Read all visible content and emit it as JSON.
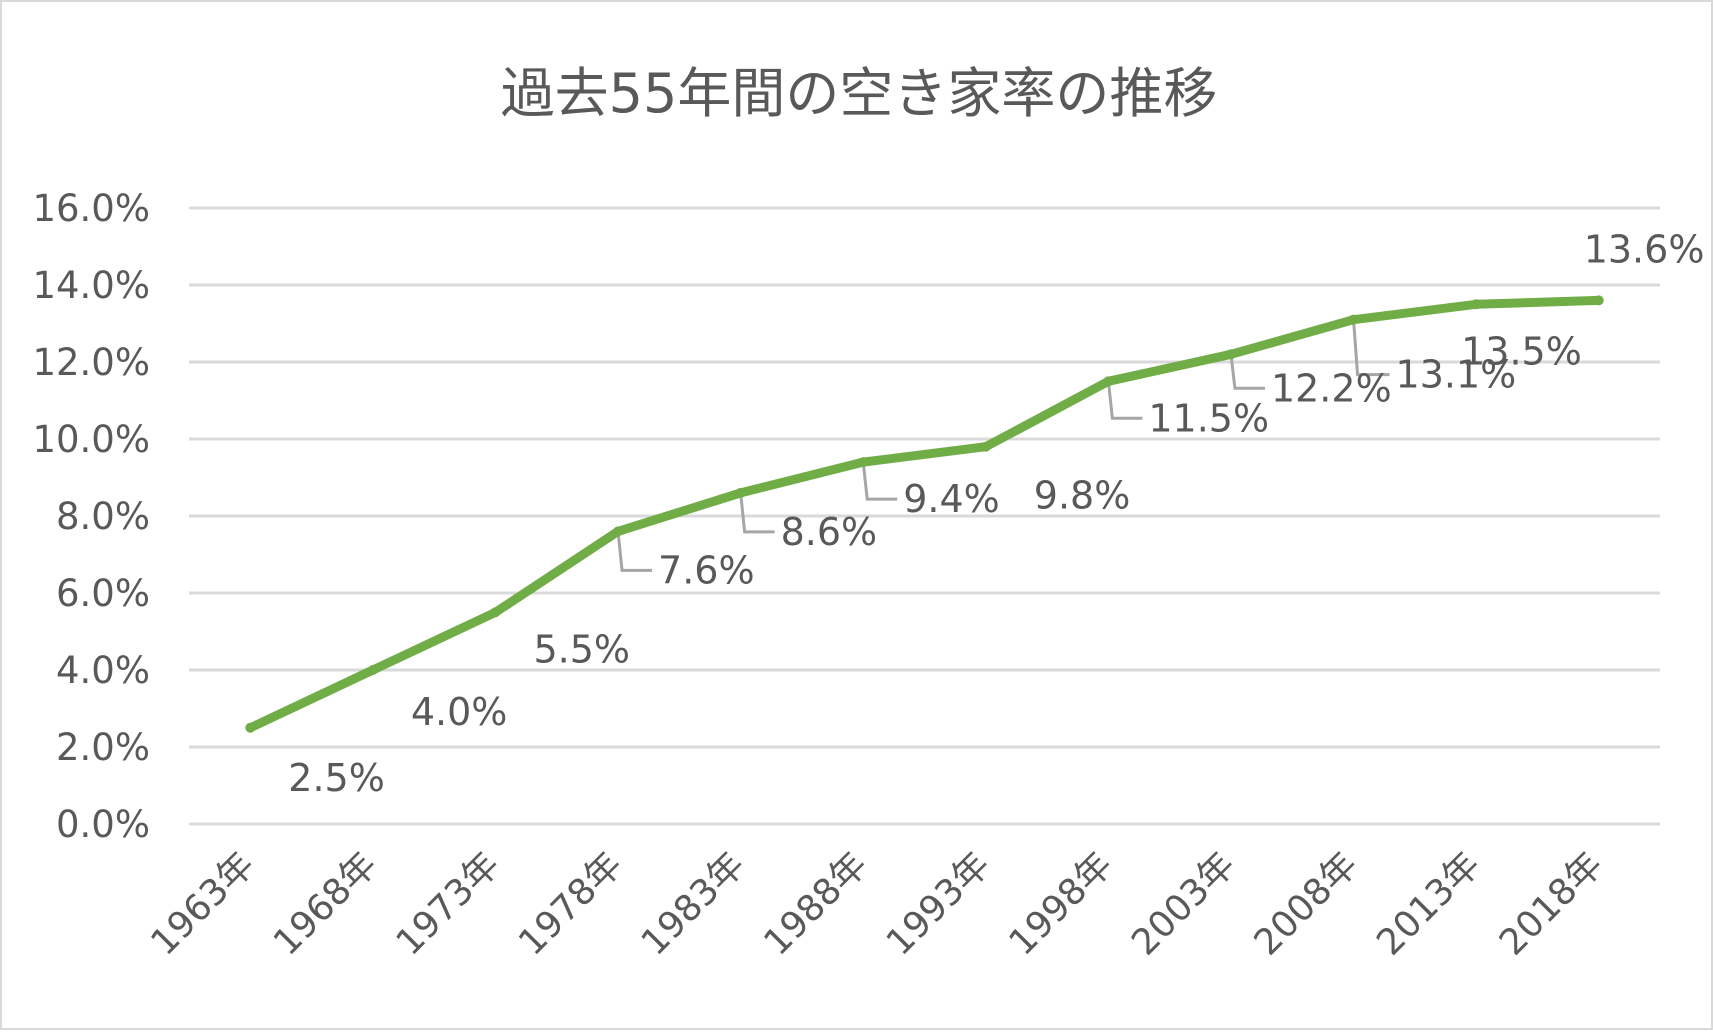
{
  "chart_data": {
    "type": "line",
    "title": "過去55年間の空き家率の推移",
    "xlabel": "",
    "ylabel": "",
    "categories": [
      "1963年",
      "1968年",
      "1973年",
      "1978年",
      "1983年",
      "1988年",
      "1993年",
      "1998年",
      "2003年",
      "2008年",
      "2013年",
      "2018年"
    ],
    "values": [
      2.5,
      4.0,
      5.5,
      7.6,
      8.6,
      9.4,
      9.8,
      11.5,
      12.2,
      13.1,
      13.5,
      13.6
    ],
    "data_labels": [
      "2.5%",
      "4.0%",
      "5.5%",
      "7.6%",
      "8.6%",
      "9.4%",
      "9.8%",
      "11.5%",
      "12.2%",
      "13.1%",
      "13.5%",
      "13.6%"
    ],
    "yticks": [
      "0.0%",
      "2.0%",
      "4.0%",
      "6.0%",
      "8.0%",
      "10.0%",
      "12.0%",
      "14.0%",
      "16.0%"
    ],
    "ylim": [
      0,
      16
    ],
    "grid": true,
    "legend": "none",
    "colors": {
      "line": "#70ad47",
      "grid": "#d9d9d9",
      "text": "#595959",
      "leader": "#a6a6a6"
    }
  }
}
